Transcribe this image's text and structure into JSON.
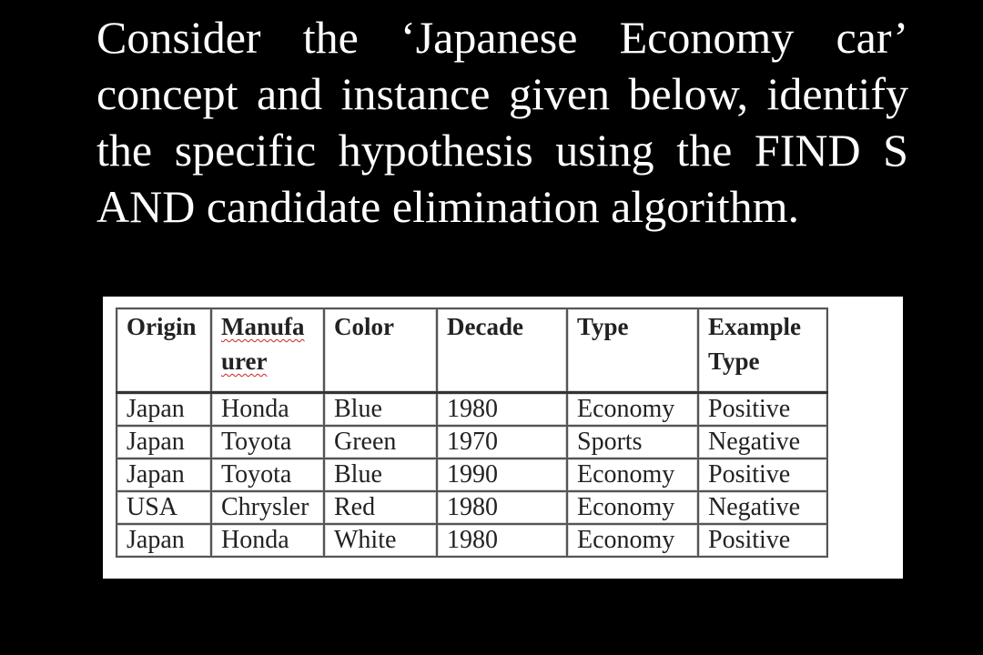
{
  "question": "Consider the ‘Japanese Economy car’ concept and instance given below, identify the specific hypothesis using the FIND S AND candidate elimination algorithm.",
  "table": {
    "headers": {
      "origin": "Origin",
      "manufacturer_line1": "Manufa",
      "manufacturer_line2": "urer",
      "color": "Color",
      "decade": "Decade",
      "type": "Type",
      "example_type_line1": "Example",
      "example_type_line2": "Type"
    },
    "rows": [
      [
        "Japan",
        "Honda",
        "Blue",
        "1980",
        "Economy",
        "Positive"
      ],
      [
        "Japan",
        "Toyota",
        "Green",
        "1970",
        "Sports",
        "Negative"
      ],
      [
        "Japan",
        "Toyota",
        "Blue",
        "1990",
        "Economy",
        "Positive"
      ],
      [
        "USA",
        "Chrysler",
        "Red",
        "1980",
        "Economy",
        "Negative"
      ],
      [
        "Japan",
        "Honda",
        "White",
        "1980",
        "Economy",
        "Positive"
      ]
    ]
  },
  "colors": {
    "background": "#000000",
    "text": "#ffffff",
    "table_background": "#ffffff"
  }
}
